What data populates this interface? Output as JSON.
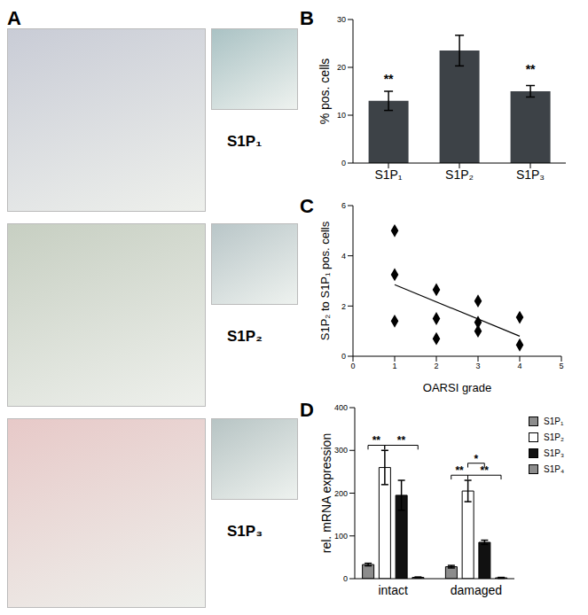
{
  "chart_data": [
    {
      "type": "image",
      "title": "A",
      "labels": [
        "S1P₁",
        "S1P₂",
        "S1P₃"
      ]
    },
    {
      "type": "bar",
      "title": "B",
      "categories": [
        "S1P₁",
        "S1P₂",
        "S1P₃"
      ],
      "values": [
        13,
        23.5,
        15
      ],
      "errors": [
        2,
        3.2,
        1.2
      ],
      "annotations": [
        "**",
        null,
        "**"
      ],
      "color": "#3d4247",
      "y_label": "% pos. cells",
      "ylim": [
        0,
        30
      ],
      "yticks": [
        0,
        10,
        20,
        30
      ]
    },
    {
      "type": "scatter",
      "title": "C",
      "x": [
        1,
        1,
        1,
        2,
        2,
        2,
        3,
        3,
        3,
        4,
        4
      ],
      "y": [
        5,
        3.25,
        1.4,
        2.65,
        1.5,
        0.7,
        2.2,
        1.35,
        1.0,
        1.55,
        0.45
      ],
      "fit": {
        "x": [
          1,
          4
        ],
        "y": [
          2.85,
          0.8
        ]
      },
      "marker": "diamond",
      "color": "#000000",
      "x_label": "OARSI grade",
      "y_label": "S1P₂ to S1P₁ pos. cells",
      "xlim": [
        0,
        5
      ],
      "xticks": [
        0,
        1,
        2,
        3,
        4,
        5
      ],
      "ylim": [
        0,
        6
      ],
      "yticks": [
        0,
        2,
        4,
        6
      ]
    },
    {
      "type": "bar",
      "title": "D",
      "categories": [
        "intact",
        "damaged"
      ],
      "series": [
        {
          "name": "S1P₁",
          "color": "#8c8c8c",
          "values": [
            33,
            28
          ],
          "errors": [
            3,
            3
          ]
        },
        {
          "name": "S1P₂",
          "color": "#ffffff",
          "values": [
            260,
            205
          ],
          "errors": [
            40,
            25
          ]
        },
        {
          "name": "S1P₃",
          "color": "#111111",
          "values": [
            195,
            85
          ],
          "errors": [
            35,
            5
          ]
        },
        {
          "name": "S1P₄",
          "color": "#8c8c8c",
          "values": [
            3,
            2
          ],
          "errors": [
            1,
            1
          ]
        }
      ],
      "annotations": [
        {
          "category": "intact",
          "from": "S1P₁",
          "to": "S1P₂",
          "text": "**"
        },
        {
          "category": "intact",
          "from": "S1P₂",
          "to": "S1P₄",
          "text": "**"
        },
        {
          "category": "damaged",
          "from": "S1P₁",
          "to": "S1P₂",
          "text": "**"
        },
        {
          "category": "damaged",
          "from": "S1P₂",
          "to": "S1P₄",
          "text": "**"
        },
        {
          "category": "damaged",
          "from": "S1P₂",
          "to": "S1P₃",
          "text": "*"
        }
      ],
      "y_label": "rel. mRNA expression",
      "ylim": [
        0,
        400
      ],
      "yticks": [
        0,
        100,
        200,
        300,
        400
      ],
      "legend": "right"
    }
  ]
}
